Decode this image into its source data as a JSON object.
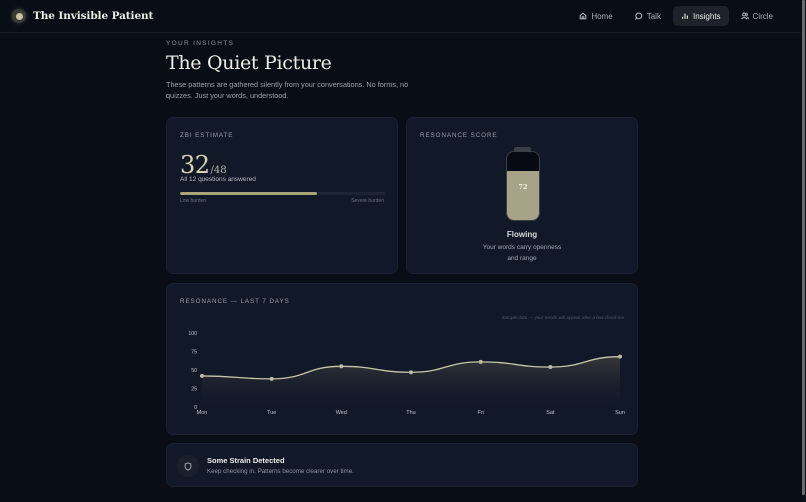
{
  "app": {
    "title": "The Invisible Patient",
    "logo_icon": "glowing-orb-icon"
  },
  "nav": {
    "items": [
      {
        "label": "Home",
        "icon": "home-icon",
        "active": false
      },
      {
        "label": "Talk",
        "icon": "chat-bubble-icon",
        "active": false
      },
      {
        "label": "Insights",
        "icon": "bar-chart-icon",
        "active": true
      },
      {
        "label": "Circle",
        "icon": "users-icon",
        "active": false
      }
    ]
  },
  "header": {
    "eyebrow": "YOUR INSIGHTS",
    "title": "The Quiet Picture",
    "subtitle": "These patterns are gathered silently from your conversations. No forms, no quizzes. Just your words, understood."
  },
  "zbi": {
    "label": "ZBI ESTIMATE",
    "score": "32",
    "max": "/48",
    "answered": "All 12 questions answered",
    "progress_pct": 67,
    "low_label": "Low burden",
    "high_label": "Severe burden",
    "bar_color": "#a9a678"
  },
  "resonance": {
    "label": "RESONANCE SCORE",
    "value": "72",
    "fill_pct": 72,
    "state": "Flowing",
    "description_line1": "Your words carry openness",
    "description_line2": "and range",
    "fill_color": "#a6a388"
  },
  "trend": {
    "label": "RESONANCE — LAST 7 DAYS",
    "note": "Sample data — your trends will appear after a few check-ins"
  },
  "chart_data": {
    "type": "area",
    "title": "Resonance — Last 7 Days",
    "categories": [
      "Mon",
      "Tue",
      "Wed",
      "Thu",
      "Fri",
      "Sat",
      "Sun"
    ],
    "values": [
      42,
      38,
      55,
      47,
      61,
      54,
      68
    ],
    "yticks": [
      0,
      25,
      50,
      75,
      100
    ],
    "ylim": [
      0,
      100
    ],
    "xlabel": "",
    "ylabel": "",
    "grid": false,
    "line_color": "#c9c6a8"
  },
  "alert": {
    "icon": "shield-icon",
    "title": "Some Strain Detected",
    "description": "Keep checking in. Patterns become clearer over time."
  }
}
